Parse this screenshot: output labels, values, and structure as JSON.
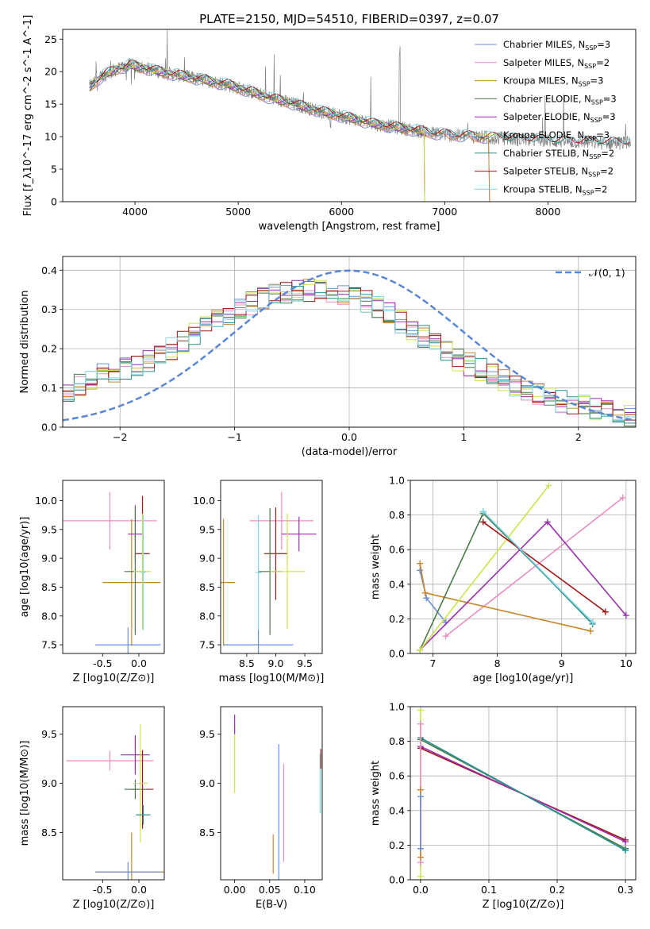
{
  "figure": {
    "title": "PLATE=2150, MJD=54510, FIBERID=0397, z=0.07"
  },
  "colors": {
    "Chabrier MILES": "#6b8fd6",
    "Salpeter MILES": "#e98cc2",
    "Kroupa MILES": "#c8862a",
    "Chabrier ELODIE": "#4a7a4a",
    "Salpeter ELODIE": "#9b2fb0",
    "Kroupa ELODIE": "#cfe34a",
    "Chabrier STELIB": "#2a8f8a",
    "Salpeter STELIB": "#a31515",
    "Kroupa STELIB": "#7fd6e6",
    "data": "#808080",
    "normal": "#5b86d6",
    "orange": "#e07b2a"
  },
  "chart_data": [
    {
      "id": "spectrum",
      "type": "line",
      "xlabel": "wavelength [Angstrom, rest frame]",
      "ylabel": "Flux [f_λ10^-17 erg cm^-2 s^-1 A^-1]",
      "xlim": [
        3300,
        8850
      ],
      "ylim": [
        0,
        26.5
      ],
      "xticks": [
        4000,
        5000,
        6000,
        7000,
        8000
      ],
      "yticks": [
        0,
        5,
        10,
        15,
        20,
        25
      ],
      "grid": false,
      "legend_position": "upper-right",
      "legend": [
        {
          "name": "Chabrier MILES",
          "nssp": "3"
        },
        {
          "name": "Salpeter MILES",
          "nssp": "2"
        },
        {
          "name": "Kroupa MILES",
          "nssp": "3"
        },
        {
          "name": "Chabrier ELODIE",
          "nssp": "3"
        },
        {
          "name": "Salpeter ELODIE",
          "nssp": "3"
        },
        {
          "name": "Kroupa ELODIE",
          "nssp": "3"
        },
        {
          "name": "Chabrier STELIB",
          "nssp": "2"
        },
        {
          "name": "Salpeter STELIB",
          "nssp": "2"
        },
        {
          "name": "Kroupa STELIB",
          "nssp": "2"
        }
      ],
      "continuum": {
        "x": [
          3550,
          3700,
          3850,
          3950,
          4100,
          4300,
          4500,
          4700,
          4900,
          5100,
          5300,
          5500,
          5700,
          5900,
          6100,
          6300,
          6500,
          6700,
          6900,
          7100,
          7300,
          7500,
          7700,
          7900,
          8100,
          8300,
          8500,
          8800
        ],
        "y": [
          17.5,
          19.5,
          20.5,
          21.0,
          20.5,
          19.8,
          19.2,
          18.6,
          18.0,
          17.0,
          16.0,
          15.2,
          14.3,
          13.5,
          12.8,
          12.0,
          11.5,
          11.0,
          10.5,
          10.2,
          10.0,
          9.8,
          9.6,
          9.5,
          9.3,
          9.2,
          9.1,
          9.0
        ]
      }
    },
    {
      "id": "residuals",
      "type": "histogram",
      "xlabel": "(data-model)/error",
      "ylabel": "Normed distribution",
      "xlim": [
        -2.5,
        2.5
      ],
      "ylim": [
        0,
        0.435
      ],
      "xticks": [
        -2,
        -1,
        0,
        1,
        2
      ],
      "yticks": [
        0.0,
        0.1,
        0.2,
        0.3,
        0.4
      ],
      "grid": true,
      "legend_position": "upper-right",
      "legend_label": "𝒩(0, 1)",
      "bin_width": 0.1,
      "envelope": {
        "x": [
          -2.5,
          -2.2,
          -1.8,
          -1.5,
          -1.2,
          -0.9,
          -0.6,
          -0.3,
          0.0,
          0.3,
          0.6,
          0.9,
          1.2,
          1.5,
          1.8,
          2.1,
          2.5
        ],
        "y": [
          0.08,
          0.13,
          0.16,
          0.21,
          0.27,
          0.31,
          0.34,
          0.35,
          0.34,
          0.3,
          0.24,
          0.18,
          0.14,
          0.1,
          0.07,
          0.05,
          0.03
        ]
      }
    },
    {
      "id": "age-vs-Z",
      "type": "errorbar",
      "xlabel": "Z [log10(Z/Z⊙)]",
      "ylabel": "age  [log10(age/yr)]",
      "xlim": [
        -1.05,
        0.35
      ],
      "ylim": [
        7.35,
        10.35
      ],
      "xticks": [
        -0.5,
        0.0
      ],
      "yticks": [
        7.5,
        8.0,
        8.5,
        9.0,
        9.5,
        10.0
      ],
      "series": [
        {
          "name": "Salpeter MILES",
          "x": -0.4,
          "xerr": 0.65,
          "y": 9.65,
          "yerr": 0.5
        },
        {
          "name": "Kroupa MILES",
          "x": -0.1,
          "xerr": 0.4,
          "y": 8.58,
          "yerr": 1.1
        },
        {
          "name": "Chabrier MILES",
          "x": -0.15,
          "xerr": 0.45,
          "y": 7.5,
          "yerr": 0.3
        },
        {
          "name": "Salpeter ELODIE",
          "x": -0.05,
          "xerr": 0.1,
          "y": 9.42,
          "yerr": 0.5
        },
        {
          "name": "Salpeter STELIB",
          "x": 0.05,
          "xerr": 0.1,
          "y": 9.08,
          "yerr": 1.0
        },
        {
          "name": "Chabrier ELODIE",
          "x": -0.05,
          "xerr": 0.15,
          "y": 8.77,
          "yerr": 1.1
        },
        {
          "name": "Kroupa ELODIE",
          "x": 0.05,
          "xerr": 0.12,
          "y": 8.77,
          "yerr": 1.0
        },
        {
          "name": "Kroupa STELIB",
          "x": 0.06,
          "xerr": 0.03,
          "y": 8.75,
          "yerr": 1.0
        }
      ]
    },
    {
      "id": "age-vs-mass",
      "type": "errorbar",
      "xlabel": "mass [log10(M/M⊙)]",
      "ylabel": "",
      "xlim": [
        8.05,
        9.8
      ],
      "ylim": [
        7.35,
        10.35
      ],
      "xticks": [
        8.5,
        9.0,
        9.5
      ],
      "yticks": [
        7.5,
        8.0,
        8.5,
        9.0,
        9.5,
        10.0
      ],
      "series": [
        {
          "name": "Salpeter MILES",
          "x": 9.1,
          "xerr": 0.55,
          "y": 9.65,
          "yerr": 0.5
        },
        {
          "name": "Kroupa MILES",
          "x": 8.1,
          "xerr": 0.2,
          "y": 8.58,
          "yerr": 1.1
        },
        {
          "name": "Chabrier MILES",
          "x": 8.7,
          "xerr": 0.6,
          "y": 7.5,
          "yerr": 0.3
        },
        {
          "name": "Salpeter ELODIE",
          "x": 9.4,
          "xerr": 0.3,
          "y": 9.42,
          "yerr": 0.3
        },
        {
          "name": "Salpeter STELIB",
          "x": 9.0,
          "xerr": 0.2,
          "y": 9.08,
          "yerr": 0.8
        },
        {
          "name": "Chabrier ELODIE",
          "x": 8.9,
          "xerr": 0.2,
          "y": 8.77,
          "yerr": 1.1
        },
        {
          "name": "Kroupa ELODIE",
          "x": 9.2,
          "xerr": 0.3,
          "y": 8.77,
          "yerr": 1.0
        },
        {
          "name": "Kroupa STELIB",
          "x": 8.7,
          "xerr": 0.05,
          "y": 8.75,
          "yerr": 1.0
        }
      ]
    },
    {
      "id": "weight-vs-age",
      "type": "line",
      "xlabel": "age  [log10(age/yr)]",
      "ylabel": "mass weight",
      "xlim": [
        6.65,
        10.15
      ],
      "ylim": [
        0.0,
        1.0
      ],
      "xticks": [
        7,
        8,
        9,
        10
      ],
      "yticks": [
        0.0,
        0.2,
        0.4,
        0.6,
        0.8,
        1.0
      ],
      "grid": true,
      "series": [
        {
          "name": "Chabrier MILES",
          "x": [
            6.8,
            6.9,
            7.2
          ],
          "y": [
            0.48,
            0.32,
            0.18
          ]
        },
        {
          "name": "Salpeter MILES",
          "x": [
            7.2,
            9.95
          ],
          "y": [
            0.1,
            0.9
          ]
        },
        {
          "name": "Kroupa MILES",
          "x": [
            6.8,
            6.88,
            9.45
          ],
          "y": [
            0.52,
            0.35,
            0.13
          ]
        },
        {
          "name": "Chabrier ELODIE",
          "x": [
            6.8,
            7.78,
            9.48
          ],
          "y": [
            0.02,
            0.81,
            0.18
          ]
        },
        {
          "name": "Salpeter ELODIE",
          "x": [
            6.8,
            8.78,
            10.0
          ],
          "y": [
            0.02,
            0.76,
            0.22
          ]
        },
        {
          "name": "Kroupa ELODIE",
          "x": [
            6.8,
            8.8
          ],
          "y": [
            0.02,
            0.97
          ]
        },
        {
          "name": "Chabrier STELIB",
          "x": [
            7.78,
            9.48
          ],
          "y": [
            0.82,
            0.17
          ]
        },
        {
          "name": "Salpeter STELIB",
          "x": [
            7.78,
            9.68
          ],
          "y": [
            0.76,
            0.24
          ]
        },
        {
          "name": "Kroupa STELIB",
          "x": [
            7.78,
            9.48
          ],
          "y": [
            0.82,
            0.18
          ]
        }
      ]
    },
    {
      "id": "mass-vs-Z",
      "type": "errorbar",
      "xlabel": "Z [log10(Z/Z⊙)]",
      "ylabel": "mass [log10(M/M⊙)]",
      "xlim": [
        -1.05,
        0.35
      ],
      "ylim": [
        8.02,
        9.78
      ],
      "xticks": [
        -0.5,
        0.0
      ],
      "yticks": [
        8.5,
        9.0,
        9.5
      ],
      "series": [
        {
          "name": "Salpeter MILES",
          "x": -0.4,
          "xerr": 0.6,
          "y": 9.23,
          "yerr": 0.1
        },
        {
          "name": "Kroupa MILES",
          "x": -0.1,
          "xerr": 0.5,
          "y": 8.1,
          "yerr": 0.4
        },
        {
          "name": "Chabrier MILES",
          "x": -0.15,
          "xerr": 0.45,
          "y": 8.1,
          "yerr": 0.1
        },
        {
          "name": "Salpeter ELODIE",
          "x": -0.05,
          "xerr": 0.2,
          "y": 9.29,
          "yerr": 0.2
        },
        {
          "name": "Salpeter STELIB",
          "x": 0.05,
          "xerr": 0.15,
          "y": 8.94,
          "yerr": 0.4
        },
        {
          "name": "Chabrier ELODIE",
          "x": -0.05,
          "xerr": 0.15,
          "y": 8.94,
          "yerr": 0.1
        },
        {
          "name": "Kroupa ELODIE",
          "x": 0.02,
          "xerr": 0.1,
          "y": 9.0,
          "yerr": 0.6
        },
        {
          "name": "Chabrier STELIB",
          "x": 0.06,
          "xerr": 0.1,
          "y": 8.68,
          "yerr": 0.1
        }
      ]
    },
    {
      "id": "mass-vs-EBV",
      "type": "errorbar",
      "xlabel": "E(B-V)",
      "ylabel": "",
      "xlim": [
        -0.02,
        0.125
      ],
      "ylim": [
        8.02,
        9.78
      ],
      "xticks": [
        0.0,
        0.05,
        0.1
      ],
      "yticks": [
        8.5,
        9.0,
        9.5
      ],
      "series": [
        {
          "name": "Kroupa ELODIE",
          "x": 0.0,
          "xerr": 0.0,
          "y": 9.25,
          "yerr": 0.35
        },
        {
          "name": "Salpeter ELODIE",
          "x": 0.0,
          "xerr": 0.0,
          "y": 9.6,
          "yerr": 0.1
        },
        {
          "name": "Chabrier MILES",
          "x": 0.063,
          "xerr": 0.0,
          "y": 8.7,
          "yerr": 0.7
        },
        {
          "name": "Kroupa MILES",
          "x": 0.055,
          "xerr": 0.0,
          "y": 8.28,
          "yerr": 0.2
        },
        {
          "name": "Salpeter MILES",
          "x": 0.07,
          "xerr": 0.0,
          "y": 8.7,
          "yerr": 0.5
        },
        {
          "name": "Kroupa STELIB",
          "x": 0.122,
          "xerr": 0.0,
          "y": 9.0,
          "yerr": 0.3
        },
        {
          "name": "Salpeter STELIB",
          "x": 0.123,
          "xerr": 0.0,
          "y": 9.25,
          "yerr": 0.1
        }
      ]
    },
    {
      "id": "weight-vs-Z",
      "type": "line",
      "xlabel": "Z [log10(Z/Z⊙)]",
      "ylabel": "mass weight",
      "xlim": [
        -0.015,
        0.315
      ],
      "ylim": [
        0.0,
        1.0
      ],
      "xticks": [
        0.0,
        0.1,
        0.2,
        0.3
      ],
      "yticks": [
        0.0,
        0.2,
        0.4,
        0.6,
        0.8,
        1.0
      ],
      "grid": true,
      "series": [
        {
          "name": "Chabrier ELODIE",
          "x": [
            0.0,
            0.3
          ],
          "y": [
            0.81,
            0.18
          ]
        },
        {
          "name": "Salpeter STELIB",
          "x": [
            0.0,
            0.3
          ],
          "y": [
            0.76,
            0.23
          ]
        },
        {
          "name": "Salpeter ELODIE",
          "x": [
            0.0,
            0.3
          ],
          "y": [
            0.77,
            0.22
          ]
        },
        {
          "name": "Kroupa STELIB",
          "x": [
            0.0,
            0.3
          ],
          "y": [
            0.82,
            0.17
          ]
        },
        {
          "name": "Chabrier STELIB",
          "x": [
            0.0,
            0.3
          ],
          "y": [
            0.82,
            0.17
          ]
        },
        {
          "name": "Kroupa ELODIE",
          "x": [
            0.0,
            0.0
          ],
          "y": [
            0.02,
            0.98
          ]
        },
        {
          "name": "Salpeter MILES",
          "x": [
            0.0,
            0.0
          ],
          "y": [
            0.1,
            0.9
          ]
        },
        {
          "name": "Kroupa MILES",
          "x": [
            0.0,
            0.0
          ],
          "y": [
            0.13,
            0.52
          ]
        },
        {
          "name": "Chabrier MILES",
          "x": [
            0.0,
            0.0
          ],
          "y": [
            0.18,
            0.48
          ]
        }
      ]
    }
  ]
}
